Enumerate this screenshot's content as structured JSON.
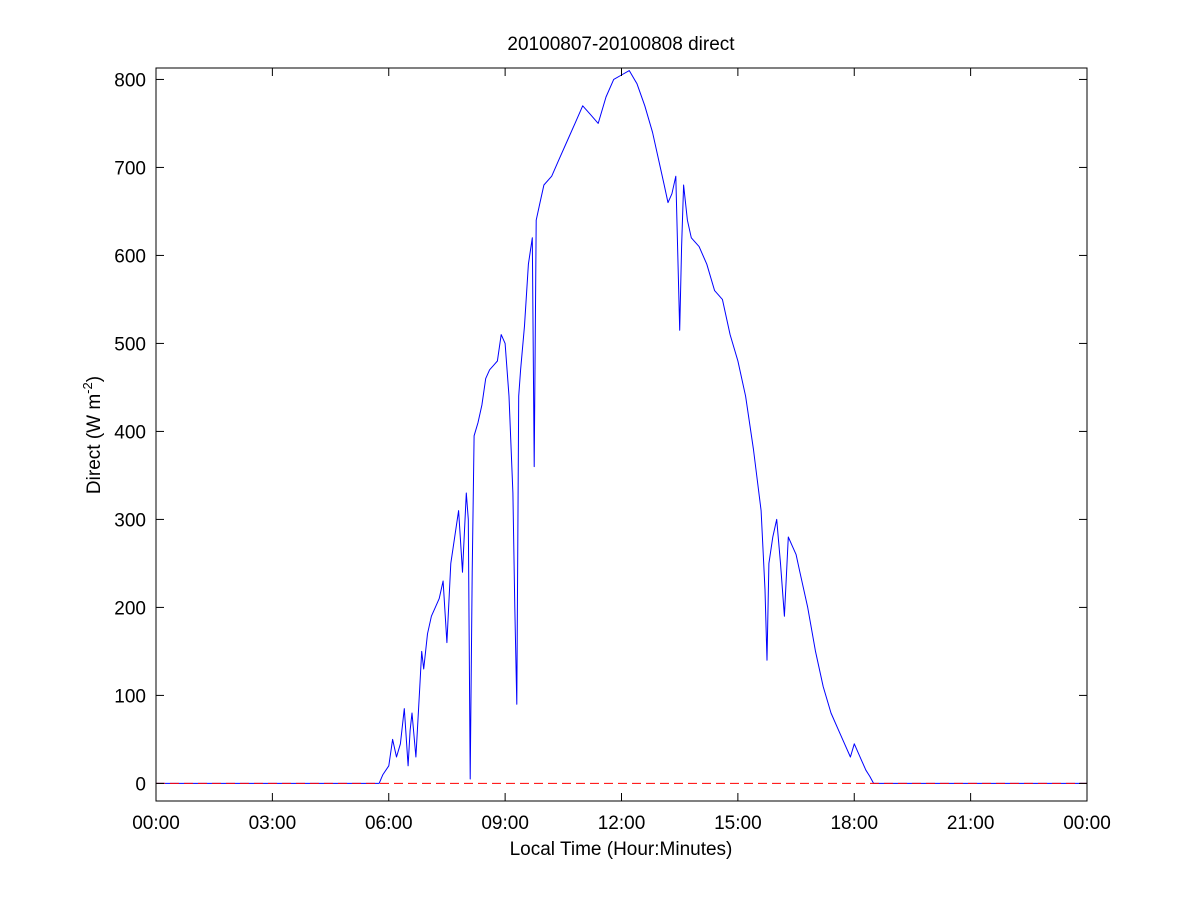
{
  "chart_data": {
    "type": "line",
    "title": "20100807-20100808 direct",
    "xlabel": "Local Time (Hour:Minutes)",
    "ylabel_main": "Direct (W m",
    "ylabel_exp": "-2",
    "ylabel_close": ")",
    "x_unit": "hours",
    "xlim": [
      0,
      24
    ],
    "ylim": [
      -20,
      813
    ],
    "x_tick_values": [
      0,
      3,
      6,
      9,
      12,
      15,
      18,
      21,
      24
    ],
    "x_tick_labels": [
      "00:00",
      "03:00",
      "06:00",
      "09:00",
      "12:00",
      "15:00",
      "18:00",
      "21:00",
      "00:00"
    ],
    "y_tick_values": [
      0,
      100,
      200,
      300,
      400,
      500,
      600,
      700,
      800
    ],
    "y_tick_labels": [
      "0",
      "100",
      "200",
      "300",
      "400",
      "500",
      "600",
      "700",
      "800"
    ],
    "grid": false,
    "series": [
      {
        "color": "#0000ff",
        "style": "solid",
        "x": [
          0,
          5.75,
          5.85,
          6.0,
          6.1,
          6.2,
          6.3,
          6.4,
          6.5,
          6.55,
          6.6,
          6.7,
          6.8,
          6.85,
          6.9,
          7.0,
          7.1,
          7.2,
          7.3,
          7.4,
          7.5,
          7.6,
          7.7,
          7.8,
          7.9,
          8.0,
          8.05,
          8.1,
          8.15,
          8.2,
          8.3,
          8.4,
          8.5,
          8.6,
          8.7,
          8.8,
          8.9,
          9.0,
          9.1,
          9.2,
          9.25,
          9.3,
          9.35,
          9.4,
          9.5,
          9.6,
          9.7,
          9.75,
          9.8,
          9.9,
          10.0,
          10.2,
          10.4,
          10.6,
          10.8,
          11.0,
          11.2,
          11.4,
          11.6,
          11.8,
          12.0,
          12.2,
          12.4,
          12.6,
          12.8,
          13.0,
          13.1,
          13.2,
          13.3,
          13.4,
          13.5,
          13.55,
          13.6,
          13.7,
          13.8,
          14.0,
          14.2,
          14.4,
          14.6,
          14.8,
          15.0,
          15.2,
          15.4,
          15.6,
          15.7,
          15.75,
          15.8,
          15.9,
          16.0,
          16.1,
          16.2,
          16.3,
          16.4,
          16.5,
          16.6,
          16.8,
          17.0,
          17.2,
          17.4,
          17.6,
          17.8,
          17.9,
          18.0,
          18.1,
          18.2,
          18.3,
          18.4,
          18.5,
          18.6,
          24
        ],
        "y": [
          0,
          0,
          10,
          20,
          50,
          30,
          45,
          85,
          20,
          60,
          80,
          30,
          110,
          150,
          130,
          170,
          190,
          200,
          210,
          230,
          160,
          250,
          280,
          310,
          240,
          330,
          300,
          5,
          240,
          395,
          410,
          430,
          460,
          470,
          475,
          480,
          510,
          500,
          440,
          330,
          200,
          90,
          440,
          470,
          520,
          590,
          620,
          360,
          640,
          660,
          680,
          690,
          710,
          730,
          750,
          770,
          760,
          750,
          780,
          800,
          805,
          810,
          795,
          770,
          740,
          700,
          680,
          660,
          670,
          690,
          515,
          610,
          680,
          640,
          620,
          610,
          590,
          560,
          550,
          510,
          480,
          440,
          380,
          310,
          220,
          140,
          250,
          280,
          300,
          250,
          190,
          280,
          270,
          260,
          240,
          200,
          150,
          110,
          80,
          60,
          40,
          30,
          45,
          35,
          25,
          15,
          8,
          0,
          0,
          0
        ]
      },
      {
        "color": "#ff0000",
        "style": "dashed",
        "x": [
          0,
          24
        ],
        "y": [
          0,
          0
        ]
      }
    ]
  }
}
